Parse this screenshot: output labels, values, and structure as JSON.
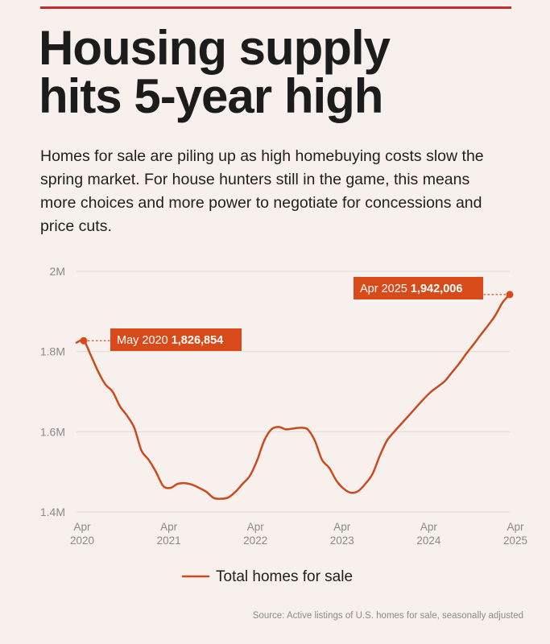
{
  "title_lines": [
    "Housing supply",
    "hits 5-year high"
  ],
  "subtitle": "Homes for sale are piling up as high homebuying costs slow the spring market. For house hunters still in the game, this means more choices and more power to negotiate for concessions and price cuts.",
  "source": "Source: Active listings of U.S. homes for sale, seasonally adjusted",
  "colors": {
    "line": "#cc4a1c",
    "callout_bg": "#d94a1b",
    "rule": "#c62a2a",
    "grid": "#e2d9d5",
    "background": "#f7f0ed"
  },
  "chart_data": {
    "type": "line",
    "title": "Housing supply hits 5-year high",
    "xlabel": "",
    "ylabel": "",
    "ylim": [
      1400000,
      2000000
    ],
    "y_ticks": [
      {
        "value": 2000000,
        "label": "2M"
      },
      {
        "value": 1800000,
        "label": "1.8M"
      },
      {
        "value": 1600000,
        "label": "1.6M"
      },
      {
        "value": 1400000,
        "label": "1.4M"
      }
    ],
    "x_ticks": [
      {
        "date": "2020-04",
        "line1": "Apr",
        "line2": "2020"
      },
      {
        "date": "2021-04",
        "line1": "Apr",
        "line2": "2021"
      },
      {
        "date": "2022-04",
        "line1": "Apr",
        "line2": "2022"
      },
      {
        "date": "2023-04",
        "line1": "Apr",
        "line2": "2023"
      },
      {
        "date": "2024-04",
        "line1": "Apr",
        "line2": "2024"
      },
      {
        "date": "2025-04",
        "line1": "Apr",
        "line2": "2025"
      }
    ],
    "legend": {
      "position": "bottom",
      "label": "Total homes for sale"
    },
    "grid": true,
    "series": [
      {
        "name": "Total homes for sale",
        "color": "#cc4a1c",
        "x": [
          "2020-04",
          "2020-05",
          "2020-06",
          "2020-07",
          "2020-08",
          "2020-09",
          "2020-10",
          "2020-11",
          "2020-12",
          "2021-01",
          "2021-02",
          "2021-03",
          "2021-04",
          "2021-05",
          "2021-06",
          "2021-07",
          "2021-08",
          "2021-09",
          "2021-10",
          "2021-11",
          "2021-12",
          "2022-01",
          "2022-02",
          "2022-03",
          "2022-04",
          "2022-05",
          "2022-06",
          "2022-07",
          "2022-08",
          "2022-09",
          "2022-10",
          "2022-11",
          "2022-12",
          "2023-01",
          "2023-02",
          "2023-03",
          "2023-04",
          "2023-05",
          "2023-06",
          "2023-07",
          "2023-08",
          "2023-09",
          "2023-10",
          "2023-11",
          "2023-12",
          "2024-01",
          "2024-02",
          "2024-03",
          "2024-04",
          "2024-05",
          "2024-06",
          "2024-07",
          "2024-08",
          "2024-09",
          "2024-10",
          "2024-11",
          "2024-12",
          "2025-01",
          "2025-02",
          "2025-03",
          "2025-04"
        ],
        "values": [
          1822000,
          1826854,
          1790000,
          1750000,
          1718000,
          1700000,
          1664000,
          1640000,
          1610000,
          1553000,
          1530000,
          1500000,
          1465000,
          1460000,
          1470000,
          1472000,
          1468000,
          1460000,
          1450000,
          1435000,
          1433000,
          1436000,
          1450000,
          1470000,
          1490000,
          1528000,
          1578000,
          1606000,
          1612000,
          1606000,
          1608000,
          1610000,
          1606000,
          1578000,
          1530000,
          1510000,
          1478000,
          1458000,
          1448000,
          1452000,
          1470000,
          1495000,
          1540000,
          1578000,
          1600000,
          1620000,
          1640000,
          1660000,
          1680000,
          1698000,
          1712000,
          1726000,
          1748000,
          1770000,
          1795000,
          1818000,
          1842000,
          1865000,
          1890000,
          1922000,
          1942006
        ]
      }
    ],
    "annotations": [
      {
        "date": "2020-05",
        "value": 1826854,
        "label_prefix": "May 2020",
        "label_value": "1,826,854"
      },
      {
        "date": "2025-04",
        "value": 1942006,
        "label_prefix": "Apr 2025",
        "label_value": "1,942,006"
      }
    ]
  }
}
